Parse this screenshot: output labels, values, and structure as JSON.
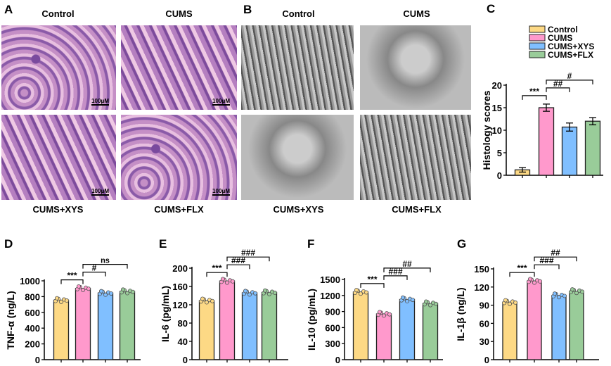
{
  "panel_a": {
    "label": "A",
    "captions": [
      "Control",
      "CUMS",
      "CUMS+XYS",
      "CUMS+FLX"
    ],
    "scale_bar": "100μM"
  },
  "panel_b": {
    "label": "B",
    "captions": [
      "Control",
      "CUMS",
      "CUMS+XYS",
      "CUMS+FLX"
    ]
  },
  "groups": [
    "Control",
    "CUMS",
    "CUMS+XYS",
    "CUMS+FLX"
  ],
  "colors": [
    "#fdd985",
    "#ff99cc",
    "#80bfff",
    "#99cc99"
  ],
  "chart_data": [
    {
      "panel": "C",
      "type": "bar",
      "ylabel": "Histology scores",
      "ylim": [
        0,
        20
      ],
      "ticks": [
        0,
        5,
        10,
        15,
        20
      ],
      "categories": [
        "Control",
        "CUMS",
        "CUMS+XYS",
        "CUMS+FLX"
      ],
      "values": [
        1.2,
        15,
        10.7,
        12
      ],
      "errors": [
        0.5,
        0.8,
        0.9,
        0.8
      ],
      "legend": "top",
      "significance": [
        {
          "from": 0,
          "to": 1,
          "label": "***"
        },
        {
          "from": 1,
          "to": 2,
          "label": "##"
        },
        {
          "from": 1,
          "to": 3,
          "label": "#"
        }
      ]
    },
    {
      "panel": "D",
      "type": "bar",
      "ylabel": "TNF-α (ng/L)",
      "ylim": [
        0,
        1000
      ],
      "ticks": [
        0,
        200,
        400,
        600,
        800,
        1000
      ],
      "categories": [
        "Control",
        "CUMS",
        "CUMS+XYS",
        "CUMS+FLX"
      ],
      "values": [
        755,
        905,
        845,
        865
      ],
      "significance": [
        {
          "from": 0,
          "to": 1,
          "label": "***"
        },
        {
          "from": 1,
          "to": 2,
          "label": "#"
        },
        {
          "from": 1,
          "to": 3,
          "label": "ns"
        }
      ]
    },
    {
      "panel": "E",
      "type": "bar",
      "ylabel": "IL-6 (pg/mL)",
      "ylim": [
        0,
        200
      ],
      "ticks": [
        0,
        40,
        80,
        120,
        160,
        200
      ],
      "categories": [
        "Control",
        "CUMS",
        "CUMS+XYS",
        "CUMS+FLX"
      ],
      "values": [
        129,
        172,
        146,
        147
      ],
      "significance": [
        {
          "from": 0,
          "to": 1,
          "label": "***"
        },
        {
          "from": 1,
          "to": 2,
          "label": "###"
        },
        {
          "from": 1,
          "to": 3,
          "label": "###"
        }
      ]
    },
    {
      "panel": "F",
      "type": "bar",
      "ylabel": "IL-10 (pg/mL)",
      "ylim": [
        0,
        1500
      ],
      "ticks": [
        0,
        300,
        600,
        900,
        1200,
        1500
      ],
      "categories": [
        "Control",
        "CUMS",
        "CUMS+XYS",
        "CUMS+FLX"
      ],
      "values": [
        1265,
        855,
        1125,
        1050
      ],
      "significance": [
        {
          "from": 0,
          "to": 1,
          "label": "***"
        },
        {
          "from": 1,
          "to": 2,
          "label": "###"
        },
        {
          "from": 1,
          "to": 3,
          "label": "##"
        }
      ]
    },
    {
      "panel": "G",
      "type": "bar",
      "ylabel": "IL-1β (ng/L)",
      "ylim": [
        0,
        150
      ],
      "ticks": [
        0,
        30,
        60,
        90,
        120,
        150
      ],
      "categories": [
        "Control",
        "CUMS",
        "CUMS+XYS",
        "CUMS+FLX"
      ],
      "values": [
        95,
        130,
        106,
        113
      ],
      "significance": [
        {
          "from": 0,
          "to": 1,
          "label": "***"
        },
        {
          "from": 1,
          "to": 2,
          "label": "###"
        },
        {
          "from": 1,
          "to": 3,
          "label": "##"
        }
      ]
    }
  ]
}
